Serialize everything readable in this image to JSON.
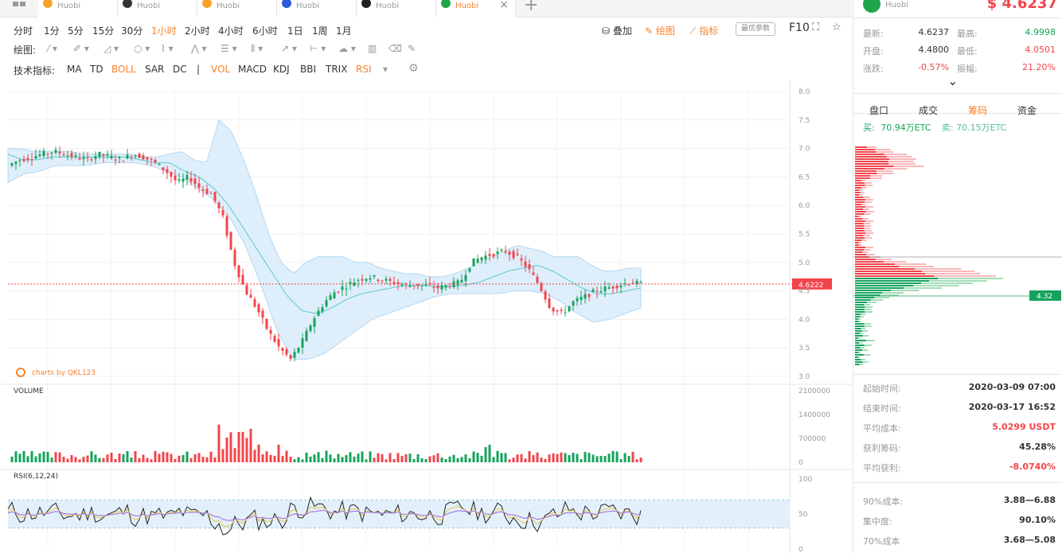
{
  "tabs": [
    {
      "sub": "Huobi",
      "color": "#f7a32a",
      "active": false,
      "close": false
    },
    {
      "sub": "Huobi",
      "color": "#333333",
      "active": false,
      "close": false
    },
    {
      "sub": "Huobi",
      "color": "#f7a32a",
      "active": false,
      "close": false
    },
    {
      "sub": "Huobi",
      "color": "#2a5ad6",
      "active": false,
      "close": false
    },
    {
      "sub": "Huobi",
      "color": "#222222",
      "active": false,
      "close": false
    },
    {
      "sub": "Huobi",
      "color": "#1fa64a",
      "active": true,
      "close": true
    }
  ],
  "tab_close": "×",
  "tab_add": "+",
  "intervals": [
    "分时",
    "1分",
    "5分",
    "15分",
    "30分",
    "1小时",
    "2小时",
    "4小时",
    "6小时",
    "1日",
    "1周",
    "1月"
  ],
  "active_interval": "1小时",
  "overlay_label": "叠加",
  "draw_label": "绘图",
  "indicator_label": "指标",
  "best_params": "最优参数",
  "f10": "F10",
  "draw_tools_label": "绘图:",
  "tech_label": "技术指标:",
  "tech_indicators": [
    {
      "name": "MA",
      "on": false
    },
    {
      "name": "TD",
      "on": false
    },
    {
      "name": "BOLL",
      "on": true
    },
    {
      "name": "SAR",
      "on": false
    },
    {
      "name": "DC",
      "on": false
    },
    {
      "name": "|",
      "on": false
    },
    {
      "name": "VOL",
      "on": true
    },
    {
      "name": "MACD",
      "on": false
    },
    {
      "name": "KDJ",
      "on": false
    },
    {
      "name": "BBI",
      "on": false
    },
    {
      "name": "TRIX",
      "on": false
    },
    {
      "name": "RSI",
      "on": true
    }
  ],
  "watermark": "charts by QKL123",
  "volume_label": "VOLUME",
  "rsi_label": "RSI(6,12,24)",
  "price_axis": [
    "8.0",
    "7.5",
    "7.0",
    "6.5",
    "6.0",
    "5.5",
    "5.0",
    "4.5",
    "4.0",
    "3.5",
    "3.0"
  ],
  "volume_axis": [
    "2100000",
    "1400000",
    "700000",
    "0"
  ],
  "rsi_axis": [
    "100",
    "50",
    "0"
  ],
  "current_price_tag": "4.6222",
  "chip_price_tag": "4.32",
  "colors": {
    "up": "#15a35c",
    "down": "#f2444b",
    "accent": "#f7822a",
    "band": "#d9ecfb",
    "mid": "#71cfd2"
  },
  "right": {
    "exchange": "Huobi",
    "price": "$ 4.6237",
    "stats": [
      {
        "l1": "最新:",
        "v1": "4.6237",
        "c1": "val",
        "l2": "最高:",
        "v2": "4.9998",
        "c2": "green"
      },
      {
        "l1": "开盘:",
        "v1": "4.4800",
        "c1": "val",
        "l2": "最低:",
        "v2": "4.0501",
        "c2": "red"
      },
      {
        "l1": "涨跌:",
        "v1": "-0.57%",
        "c1": "red",
        "l2": "振幅:",
        "v2": "21.20%",
        "c2": "red"
      }
    ],
    "expand": "⌄",
    "subtabs": [
      "盘口",
      "成交",
      "筹码",
      "资金"
    ],
    "active_subtab": "筹码",
    "buy_label": "买:",
    "buy_value": "70.94万ETC",
    "sell_label": "卖:",
    "sell_value": "70.15万ETC",
    "info": [
      {
        "l": "起始时间:",
        "v": "2020-03-09 07:00",
        "c": "val"
      },
      {
        "l": "结束时间:",
        "v": "2020-03-17 16:52",
        "c": "val"
      },
      {
        "l": "平均成本:",
        "v": "5.0299 USDT",
        "c": "red"
      },
      {
        "l": "获利筹码:",
        "v": "45.28%",
        "c": "val"
      },
      {
        "l": "平均获利:",
        "v": "-8.0740%",
        "c": "red"
      }
    ],
    "info2": [
      {
        "l": "90%成本:",
        "v": "3.88—6.88"
      },
      {
        "l": "集中度:",
        "v": "90.10%"
      },
      {
        "l": "70%成本",
        "v": "3.68—5.08"
      }
    ]
  },
  "chart_data": {
    "type": "candlestick",
    "price_range": [
      3.0,
      8.0
    ],
    "volume_range": [
      0,
      2100000
    ],
    "rsi_range": [
      0,
      100
    ],
    "current_price": 4.6222,
    "closes": [
      6.7,
      6.8,
      6.85,
      6.9,
      6.95,
      6.9,
      6.85,
      6.8,
      6.9,
      6.85,
      6.8,
      6.9,
      6.85,
      6.75,
      6.6,
      6.4,
      6.5,
      6.3,
      6.2,
      5.8,
      5.0,
      4.5,
      4.2,
      3.8,
      3.5,
      3.3,
      3.6,
      4.0,
      4.3,
      4.5,
      4.6,
      4.7,
      4.75,
      4.7,
      4.65,
      4.6,
      4.6,
      4.6,
      4.55,
      4.6,
      4.65,
      5.0,
      5.1,
      5.15,
      5.2,
      5.1,
      4.9,
      4.6,
      4.2,
      4.1,
      4.3,
      4.4,
      4.5,
      4.55,
      4.6,
      4.65,
      4.62
    ],
    "bb_upper": [
      7.0,
      7.0,
      6.95,
      6.95,
      6.95,
      6.95,
      6.9,
      6.9,
      6.9,
      6.9,
      6.9,
      6.85,
      6.85,
      6.9,
      6.95,
      6.8,
      6.75,
      7.5,
      7.3,
      6.8,
      6.2,
      5.5,
      5.0,
      4.8,
      5.0,
      5.1,
      5.1,
      5.1,
      5.0,
      5.0,
      4.9,
      4.85,
      4.8,
      4.8,
      4.75,
      4.75,
      4.8,
      4.9,
      5.0,
      5.1,
      5.2,
      5.3,
      5.25,
      5.2,
      5.1,
      5.1,
      5.1,
      4.95,
      4.85,
      4.85,
      4.9,
      4.9
    ],
    "bb_mid": [
      6.9,
      6.8,
      6.8,
      6.85,
      6.85,
      6.85,
      6.85,
      6.85,
      6.85,
      6.8,
      6.75,
      6.75,
      6.6,
      6.5,
      6.3,
      6.0,
      5.6,
      5.2,
      4.8,
      4.4,
      4.15,
      4.1,
      4.2,
      4.35,
      4.45,
      4.5,
      4.55,
      4.6,
      4.6,
      4.58,
      4.58,
      4.6,
      4.65,
      4.75,
      4.85,
      4.9,
      4.95,
      4.85,
      4.7,
      4.55,
      4.45,
      4.45,
      4.5,
      4.55
    ],
    "bb_lower": [
      6.4,
      6.55,
      6.6,
      6.7,
      6.7,
      6.7,
      6.75,
      6.75,
      6.75,
      6.7,
      6.6,
      6.5,
      6.3,
      6.1,
      5.8,
      5.3,
      4.6,
      3.8,
      3.3,
      3.3,
      3.4,
      3.6,
      3.8,
      4.0,
      4.1,
      4.2,
      4.3,
      4.4,
      4.45,
      4.45,
      4.45,
      4.45,
      4.5,
      4.5,
      4.45,
      4.3,
      4.1,
      3.95,
      4.0,
      4.1,
      4.2
    ]
  }
}
